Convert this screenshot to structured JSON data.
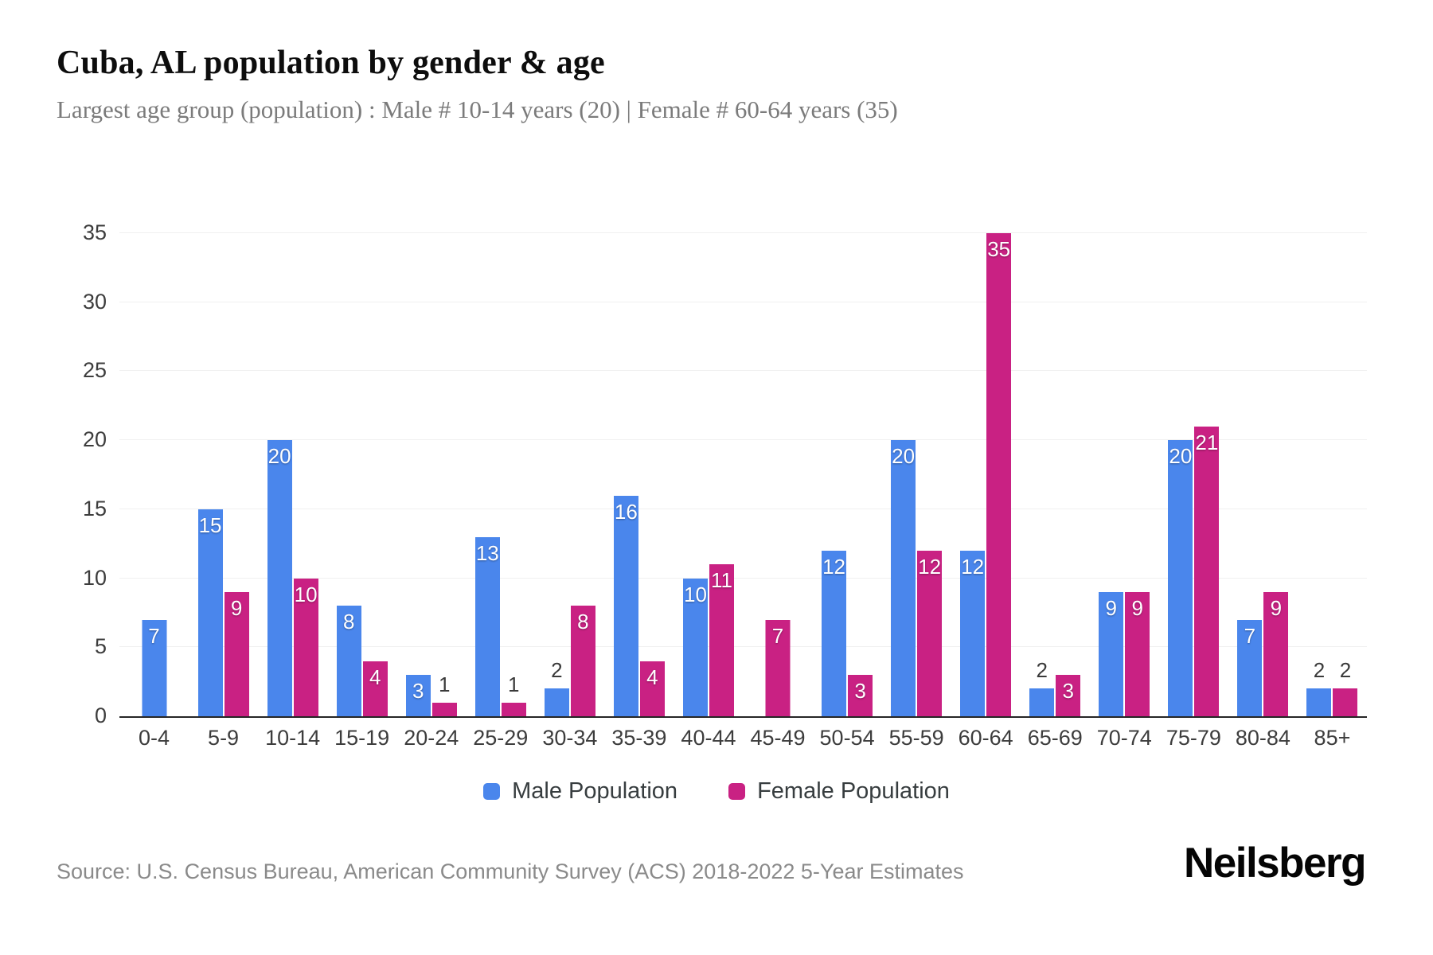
{
  "header": {
    "title": "Cuba, AL population by gender & age",
    "subtitle": "Largest age group (population) : Male # 10-14 years (20) | Female # 60-64 years (35)"
  },
  "chart_data": {
    "type": "bar",
    "categories": [
      "0-4",
      "5-9",
      "10-14",
      "15-19",
      "20-24",
      "25-29",
      "30-34",
      "35-39",
      "40-44",
      "45-49",
      "50-54",
      "55-59",
      "60-64",
      "65-69",
      "70-74",
      "75-79",
      "80-84",
      "85+"
    ],
    "series": [
      {
        "name": "Male Population",
        "color": "#4A86EC",
        "values": [
          7,
          15,
          20,
          8,
          3,
          13,
          2,
          16,
          10,
          0,
          12,
          20,
          12,
          2,
          9,
          20,
          7,
          2
        ]
      },
      {
        "name": "Female Population",
        "color": "#C92183",
        "values": [
          0,
          9,
          10,
          4,
          1,
          1,
          8,
          4,
          11,
          7,
          3,
          12,
          35,
          3,
          9,
          21,
          9,
          2
        ]
      }
    ],
    "title": "Cuba, AL population by gender & age",
    "xlabel": "",
    "ylabel": "",
    "ylim": [
      0,
      35
    ],
    "yticks": [
      0,
      5,
      10,
      15,
      20,
      25,
      30,
      35
    ],
    "grid": "horizontal",
    "legend_position": "bottom",
    "data_labels": "inside when value >= 3, above bar when value <= 2, bars with value 0 omitted"
  },
  "legend": {
    "male_label": "Male Population",
    "female_label": "Female Population"
  },
  "colors": {
    "male": "#4A86EC",
    "female": "#C92183",
    "gridline": "#f0f0f0",
    "axis_line": "#262626",
    "title_text": "#0d0d0d",
    "subtitle_text": "#7b7b7b",
    "tick_text": "#3d3d3d",
    "source_text": "#8a8a8a"
  },
  "footer": {
    "source": "Source: U.S. Census Bureau, American Community Survey (ACS) 2018-2022 5-Year Estimates",
    "logo": "Neilsberg"
  }
}
